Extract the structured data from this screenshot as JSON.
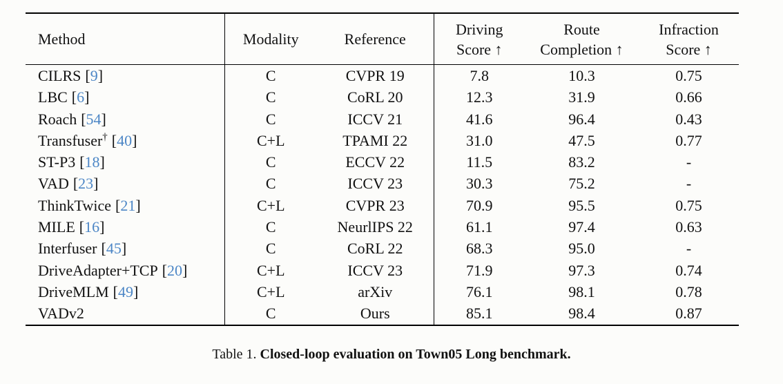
{
  "colors": {
    "background": "#fcfcfa",
    "text": "#111111",
    "rule": "#000000",
    "citation_blue": "#4c86c6"
  },
  "table": {
    "cite_open": "[",
    "cite_close": "]",
    "header": {
      "method": {
        "line1": "Method",
        "line2": ""
      },
      "modality": {
        "line1": "Modality",
        "line2": ""
      },
      "reference": {
        "line1": "Reference",
        "line2": ""
      },
      "driving": {
        "line1": "Driving",
        "line2": "Score ↑"
      },
      "route": {
        "line1": "Route",
        "line2": "Completion ↑"
      },
      "infraction": {
        "line1": "Infraction",
        "line2": "Score ↑"
      }
    },
    "rows": [
      {
        "method": "CILRS",
        "sup": "",
        "cite": "9",
        "modality": "C",
        "reference": "CVPR 19",
        "driving": "7.8",
        "route": "10.3",
        "infraction": "0.75"
      },
      {
        "method": "LBC",
        "sup": "",
        "cite": "6",
        "modality": "C",
        "reference": "CoRL 20",
        "driving": "12.3",
        "route": "31.9",
        "infraction": "0.66"
      },
      {
        "method": "Roach",
        "sup": "",
        "cite": "54",
        "modality": "C",
        "reference": "ICCV 21",
        "driving": "41.6",
        "route": "96.4",
        "infraction": "0.43"
      },
      {
        "method": "Transfuser",
        "sup": "†",
        "cite": "40",
        "modality": "C+L",
        "reference": "TPAMI 22",
        "driving": "31.0",
        "route": "47.5",
        "infraction": "0.77"
      },
      {
        "method": "ST-P3",
        "sup": "",
        "cite": "18",
        "modality": "C",
        "reference": "ECCV 22",
        "driving": "11.5",
        "route": "83.2",
        "infraction": "-"
      },
      {
        "method": "VAD",
        "sup": "",
        "cite": "23",
        "modality": "C",
        "reference": "ICCV 23",
        "driving": "30.3",
        "route": "75.2",
        "infraction": "-"
      },
      {
        "method": "ThinkTwice",
        "sup": "",
        "cite": "21",
        "modality": "C+L",
        "reference": "CVPR 23",
        "driving": "70.9",
        "route": "95.5",
        "infraction": "0.75"
      },
      {
        "method": "MILE",
        "sup": "",
        "cite": "16",
        "modality": "C",
        "reference": "NeurlIPS 22",
        "driving": "61.1",
        "route": "97.4",
        "infraction": "0.63"
      },
      {
        "method": "Interfuser",
        "sup": "",
        "cite": "45",
        "modality": "C",
        "reference": "CoRL 22",
        "driving": "68.3",
        "route": "95.0",
        "infraction": "-"
      },
      {
        "method": "DriveAdapter+TCP",
        "sup": "",
        "cite": "20",
        "modality": "C+L",
        "reference": "ICCV 23",
        "driving": "71.9",
        "route": "97.3",
        "infraction": "0.74"
      },
      {
        "method": "DriveMLM",
        "sup": "",
        "cite": "49",
        "modality": "C+L",
        "reference": "arXiv",
        "driving": "76.1",
        "route": "98.1",
        "infraction": "0.78"
      },
      {
        "method": "VADv2",
        "sup": "",
        "cite": "",
        "modality": "C",
        "reference": "Ours",
        "driving": "85.1",
        "route": "98.4",
        "infraction": "0.87"
      }
    ]
  },
  "caption": {
    "prefix": "Table 1.",
    "title": "Closed-loop evaluation on Town05 Long benchmark."
  }
}
